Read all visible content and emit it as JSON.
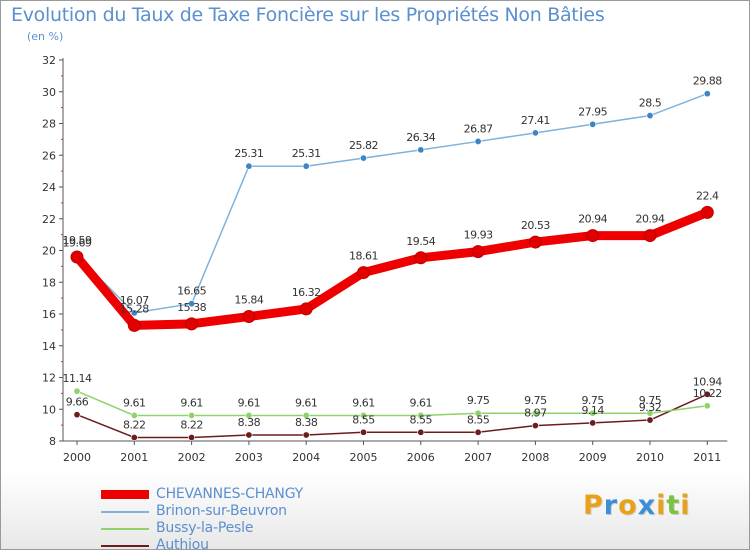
{
  "title": "Evolution du Taux de Taxe Foncière sur les Propriétés Non Bâties",
  "subtitle": "(en %)",
  "logo": {
    "letters": [
      "P",
      "r",
      "o",
      "x",
      "i",
      "t",
      "i"
    ],
    "colors": [
      "#e8a21a",
      "#3c8fd6",
      "#e8a21a",
      "#3c8fd6",
      "#e8a21a",
      "#7cc142",
      "#e8a21a"
    ]
  },
  "chart_data": {
    "type": "line",
    "title": "Evolution du Taux de Taxe Foncière sur les Propriétés Non Bâties",
    "ylabel": "(en %)",
    "xlabel": "",
    "ylim": [
      8,
      32
    ],
    "yticks": [
      8,
      10,
      12,
      14,
      16,
      18,
      20,
      22,
      24,
      26,
      28,
      30,
      32
    ],
    "categories": [
      "2000",
      "2001",
      "2002",
      "2003",
      "2004",
      "2005",
      "2006",
      "2007",
      "2008",
      "2009",
      "2010",
      "2011"
    ],
    "legend_position": "bottom-left",
    "series": [
      {
        "name": "Authiou",
        "color": "#6b1d1d",
        "style": "thin",
        "values": [
          9.66,
          8.22,
          8.22,
          8.38,
          8.38,
          8.55,
          8.55,
          8.55,
          8.97,
          9.14,
          9.32,
          10.94
        ],
        "labels": [
          "9.66",
          "8.22",
          "8.22",
          "8.38",
          "8.38",
          "8.55",
          "8.55",
          "8.55",
          "8.97",
          "9.14",
          "9.32",
          "10.94"
        ]
      },
      {
        "name": "Bussy-la-Pesle",
        "color": "#8fd16a",
        "style": "thin",
        "values": [
          11.14,
          9.61,
          9.61,
          9.61,
          9.61,
          9.61,
          9.61,
          9.75,
          9.75,
          9.75,
          9.75,
          10.22
        ],
        "labels": [
          "11.14",
          "9.61",
          "9.61",
          "9.61",
          "9.61",
          "9.61",
          "9.61",
          "9.75",
          "9.75",
          "9.75",
          "9.75",
          "10.22"
        ]
      },
      {
        "name": "Brinon-sur-Beuvron",
        "color": "#7fb3dd",
        "style": "thin",
        "values": [
          19.69,
          16.07,
          16.65,
          25.31,
          25.31,
          25.82,
          26.34,
          26.87,
          27.41,
          27.95,
          28.5,
          29.88
        ],
        "labels": [
          "19.69",
          "16.07",
          "16.65",
          "25.31",
          "25.31",
          "25.82",
          "26.34",
          "26.87",
          "27.41",
          "27.95",
          "28.5",
          "29.88"
        ]
      },
      {
        "name": "CHEVANNES-CHANGY",
        "color": "#ee0000",
        "style": "thick",
        "values": [
          19.59,
          15.28,
          15.38,
          15.84,
          16.32,
          18.61,
          19.54,
          19.93,
          20.53,
          20.94,
          20.94,
          22.4
        ],
        "labels": [
          "19.59",
          "15.28",
          "15.38",
          "15.84",
          "16.32",
          "18.61",
          "19.54",
          "19.93",
          "20.53",
          "20.94",
          "20.94",
          "22.4"
        ]
      }
    ]
  },
  "legend": [
    {
      "label": "CHEVANNES-CHANGY",
      "color": "#ee0000"
    },
    {
      "label": "Brinon-sur-Beuvron",
      "color": "#7fb3dd"
    },
    {
      "label": "Bussy-la-Pesle",
      "color": "#8fd16a"
    },
    {
      "label": "Authiou",
      "color": "#6b1d1d"
    }
  ]
}
